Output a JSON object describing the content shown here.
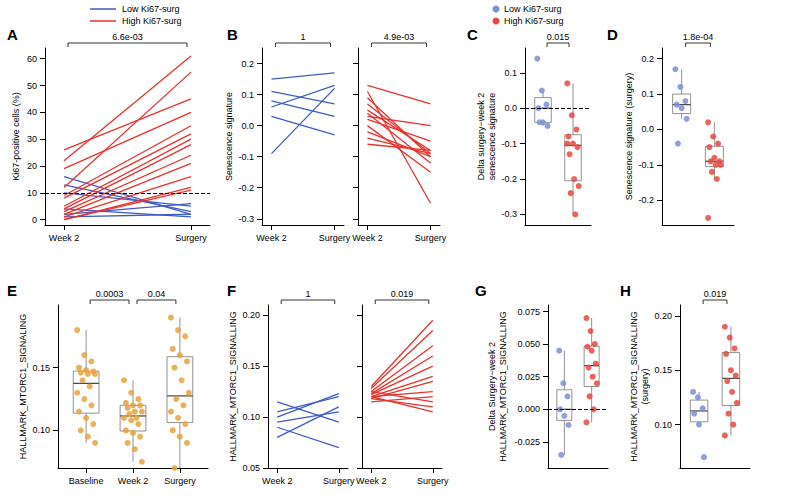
{
  "chart_data": [
    {
      "type": "line",
      "title": "A",
      "categories": [
        "Week 2",
        "Surgery"
      ],
      "y_label": "Ki67-positive cells (%)",
      "ylim": [
        -2,
        64
      ],
      "yticks": [
        0,
        10,
        20,
        30,
        40,
        50,
        60
      ],
      "grid": false,
      "legend": "top",
      "hline": 10,
      "comparisons": [
        {
          "pair": [
            "Week 2",
            "Surgery"
          ],
          "label": "6.6e-03"
        }
      ],
      "series": [
        {
          "name": "Low Ki67-surg",
          "color": "#3f5bc7",
          "values": [
            [
              16,
              2
            ],
            [
              13,
              3
            ],
            [
              10,
              5
            ],
            [
              4,
              1
            ],
            [
              2,
              6
            ],
            [
              1,
              2
            ]
          ]
        },
        {
          "name": "High Ki67-surg",
          "color": "#e8322b",
          "values": [
            [
              26,
              45
            ],
            [
              22,
              61
            ],
            [
              19,
              40
            ],
            [
              12,
              55
            ],
            [
              9,
              35
            ],
            [
              8,
              32
            ],
            [
              5,
              30
            ],
            [
              4,
              28
            ],
            [
              3,
              24
            ],
            [
              2,
              21
            ],
            [
              1,
              16
            ],
            [
              0,
              12
            ],
            [
              0,
              11
            ]
          ]
        }
      ]
    },
    {
      "type": "line",
      "title": "B",
      "categories": [
        "Week 2",
        "Surgery"
      ],
      "y_label": "Senescence signature",
      "ylim": [
        -0.32,
        0.25
      ],
      "yticks": [
        -0.3,
        -0.2,
        -0.1,
        {
          "value": 0,
          "label": "0.0"
        },
        0.1,
        0.2
      ],
      "grid": false,
      "comparisons": [
        {
          "pair": [
            "Week 2",
            "Surgery"
          ],
          "label": "1"
        }
      ],
      "series": [
        {
          "name": "Low Ki67-surg",
          "color": "#3f5bc7",
          "values": [
            [
              0.15,
              0.17
            ],
            [
              0.11,
              0.07
            ],
            [
              0.08,
              0.03
            ],
            [
              0.06,
              0.13
            ],
            [
              0.03,
              -0.03
            ],
            [
              -0.09,
              0.12
            ]
          ]
        }
      ]
    },
    {
      "type": "line",
      "categories": [
        "Week 2",
        "Surgery"
      ],
      "tick_labels": "x",
      "ylim": [
        -0.32,
        0.25
      ],
      "yticks": [
        -0.3,
        -0.2,
        -0.1,
        {
          "value": 0,
          "label": "0.0"
        },
        0.1,
        0.2
      ],
      "grid": false,
      "comparisons": [
        {
          "pair": [
            "Week 2",
            "Surgery"
          ],
          "label": "4.9e-03"
        }
      ],
      "series": [
        {
          "name": "High Ki67-surg",
          "color": "#e8322b",
          "values": [
            [
              0.13,
              0.07
            ],
            [
              0.11,
              -0.25
            ],
            [
              0.09,
              -0.1
            ],
            [
              0.07,
              -0.09
            ],
            [
              0.05,
              -0.08
            ],
            [
              0.04,
              -0.12
            ],
            [
              0.03,
              0.0
            ],
            [
              0.02,
              -0.05
            ],
            [
              0.0,
              -0.15
            ],
            [
              -0.02,
              -0.1
            ],
            [
              -0.04,
              -0.09
            ],
            [
              -0.06,
              -0.08
            ]
          ]
        }
      ]
    },
    {
      "type": "box",
      "title": "C",
      "categories": [
        "Low Ki67-surg",
        "High Ki67-surg"
      ],
      "colors": [
        "#7b8fd4",
        "#e8483f"
      ],
      "y_label": "Delta surgery−week 2\nsenescence signature",
      "tick_labels": "y",
      "legend": "top",
      "hline": 0,
      "ylim": [
        -0.33,
        0.17
      ],
      "yticks": [
        -0.3,
        -0.2,
        -0.1,
        {
          "value": 0,
          "label": "0.0"
        },
        0.1
      ],
      "grid": false,
      "comparisons": [
        {
          "pair": [
            "Low Ki67-surg",
            "High Ki67-surg"
          ],
          "label": "0.015"
        }
      ],
      "values": [
        [
          0.14,
          0.05,
          0.01,
          0.0,
          -0.04,
          -0.05,
          -0.04
        ],
        [
          0.07,
          -0.02,
          -0.06,
          -0.08,
          -0.1,
          -0.11,
          -0.13,
          -0.2,
          -0.22,
          -0.24,
          -0.3,
          -0.1
        ]
      ]
    },
    {
      "type": "box",
      "title": "D",
      "categories": [
        "Low Ki67-surg",
        "High Ki67-surg"
      ],
      "colors": [
        "#7b8fd4",
        "#e8483f"
      ],
      "y_label": "Senescence signature (surgery)",
      "tick_labels": "y",
      "ylim": [
        -0.27,
        0.23
      ],
      "yticks": [
        -0.2,
        -0.1,
        {
          "value": 0,
          "label": "0.0"
        },
        0.1,
        0.2
      ],
      "grid": false,
      "comparisons": [
        {
          "pair": [
            "Low Ki67-surg",
            "High Ki67-surg"
          ],
          "label": "1.8e-04"
        }
      ],
      "values": [
        [
          0.17,
          0.12,
          0.08,
          0.07,
          0.06,
          0.03,
          -0.04
        ],
        [
          0.02,
          -0.02,
          -0.04,
          -0.05,
          -0.08,
          -0.09,
          -0.09,
          -0.1,
          -0.1,
          -0.12,
          -0.14,
          -0.25
        ]
      ]
    },
    {
      "type": "box",
      "title": "E",
      "categories": [
        "Baseline",
        "Week 2",
        "Surgery"
      ],
      "colors": [
        "#e8a33d",
        "#e8a33d",
        "#e8a33d"
      ],
      "y_label": "HALLMARK_MTORC1_SIGNALING",
      "ylim": [
        0.07,
        0.2
      ],
      "yticks": [
        {
          "value": 0.1,
          "label": "0.10"
        },
        {
          "value": 0.15,
          "label": "0.15"
        }
      ],
      "grid": false,
      "comparisons": [
        {
          "pair": [
            "Baseline",
            "Week 2"
          ],
          "label": "0.0003"
        },
        {
          "pair": [
            "Week 2",
            "Surgery"
          ],
          "label": "0.04"
        }
      ],
      "values": [
        [
          0.18,
          0.16,
          0.155,
          0.15,
          0.148,
          0.147,
          0.146,
          0.145,
          0.145,
          0.14,
          0.135,
          0.13,
          0.125,
          0.12,
          0.115,
          0.11,
          0.105,
          0.1,
          0.095,
          0.09
        ],
        [
          0.14,
          0.13,
          0.125,
          0.122,
          0.12,
          0.12,
          0.118,
          0.115,
          0.115,
          0.113,
          0.11,
          0.11,
          0.108,
          0.105,
          0.1,
          0.098,
          0.095,
          0.09,
          0.085,
          0.075
        ],
        [
          0.19,
          0.18,
          0.175,
          0.165,
          0.16,
          0.155,
          0.15,
          0.14,
          0.13,
          0.125,
          0.12,
          0.115,
          0.11,
          0.105,
          0.1,
          0.095,
          0.09,
          0.07
        ]
      ]
    },
    {
      "type": "line",
      "title": "F",
      "categories": [
        "Week 2",
        "Surgery"
      ],
      "y_label": "HALLMARK_MTORC1_SIGNALLING",
      "ylim": [
        0.05,
        0.21
      ],
      "yticks": [
        {
          "value": 0.05,
          "label": "0.05"
        },
        {
          "value": 0.1,
          "label": "0.10"
        },
        {
          "value": 0.15,
          "label": "0.15"
        },
        {
          "value": 0.2,
          "label": "0.20"
        }
      ],
      "grid": false,
      "comparisons": [
        {
          "pair": [
            "Week 2",
            "Surgery"
          ],
          "label": "1"
        }
      ],
      "series": [
        {
          "name": "Low Ki67-surg",
          "color": "#3f5bc7",
          "values": [
            [
              0.115,
              0.095
            ],
            [
              0.105,
              0.12
            ],
            [
              0.1,
              0.123
            ],
            [
              0.095,
              0.105
            ],
            [
              0.09,
              0.07
            ],
            [
              0.08,
              0.11
            ]
          ]
        }
      ]
    },
    {
      "type": "line",
      "categories": [
        "Week 2",
        "Surgery"
      ],
      "tick_labels": "x",
      "ylim": [
        0.05,
        0.21
      ],
      "yticks": [
        {
          "value": 0.05,
          "label": "0.05"
        },
        {
          "value": 0.1,
          "label": "0.10"
        },
        {
          "value": 0.15,
          "label": "0.15"
        },
        {
          "value": 0.2,
          "label": "0.20"
        }
      ],
      "grid": false,
      "comparisons": [
        {
          "pair": [
            "Week 2",
            "Surgery"
          ],
          "label": "0.019"
        }
      ],
      "series": [
        {
          "name": "High Ki67-surg",
          "color": "#e8322b",
          "values": [
            [
              0.13,
              0.195
            ],
            [
              0.128,
              0.185
            ],
            [
              0.125,
              0.17
            ],
            [
              0.123,
              0.16
            ],
            [
              0.122,
              0.15
            ],
            [
              0.12,
              0.14
            ],
            [
              0.118,
              0.135
            ],
            [
              0.12,
              0.125
            ],
            [
              0.115,
              0.12
            ],
            [
              0.125,
              0.115
            ],
            [
              0.118,
              0.11
            ],
            [
              0.12,
              0.105
            ]
          ]
        }
      ]
    },
    {
      "type": "box",
      "title": "G",
      "categories": [
        "Low Ki67-surg",
        "High Ki67-surg"
      ],
      "colors": [
        "#7b8fd4",
        "#e8483f"
      ],
      "y_label": "Delta Surgery−week 2\nHALLMARK_MTORC1_SIGNALLING",
      "tick_labels": "y",
      "hline": 0,
      "ylim": [
        -0.045,
        0.08
      ],
      "yticks": [
        {
          "value": -0.025,
          "label": "-0.025"
        },
        {
          "value": 0,
          "label": "0.000"
        },
        {
          "value": 0.025,
          "label": "0.025"
        },
        {
          "value": 0.05,
          "label": "0.050"
        },
        {
          "value": 0.075,
          "label": "0.075"
        }
      ],
      "grid": false,
      "values": [
        [
          0.045,
          0.02,
          0.01,
          0.0,
          -0.005,
          -0.012,
          -0.035
        ],
        [
          0.07,
          0.06,
          0.05,
          0.048,
          0.045,
          0.035,
          0.032,
          0.025,
          0.02,
          0.01,
          0.0,
          -0.01
        ]
      ]
    },
    {
      "type": "box",
      "title": "H",
      "categories": [
        "Low Ki67-surg",
        "High Ki67-surg"
      ],
      "colors": [
        "#7b8fd4",
        "#e8483f"
      ],
      "y_label": "HALLMARK_MTORC1_SIGNALLING\n(surgery)",
      "tick_labels": "y",
      "ylim": [
        0.06,
        0.21
      ],
      "yticks": [
        {
          "value": 0.1,
          "label": "0.10"
        },
        {
          "value": 0.15,
          "label": "0.15"
        },
        {
          "value": 0.2,
          "label": "0.20"
        }
      ],
      "grid": false,
      "comparisons": [
        {
          "pair": [
            "Low Ki67-surg",
            "High Ki67-surg"
          ],
          "label": "0.019"
        }
      ],
      "values": [
        [
          0.13,
          0.125,
          0.115,
          0.11,
          0.1,
          0.07
        ],
        [
          0.19,
          0.18,
          0.17,
          0.165,
          0.15,
          0.145,
          0.14,
          0.13,
          0.12,
          0.11,
          0.1,
          0.09
        ]
      ]
    }
  ]
}
